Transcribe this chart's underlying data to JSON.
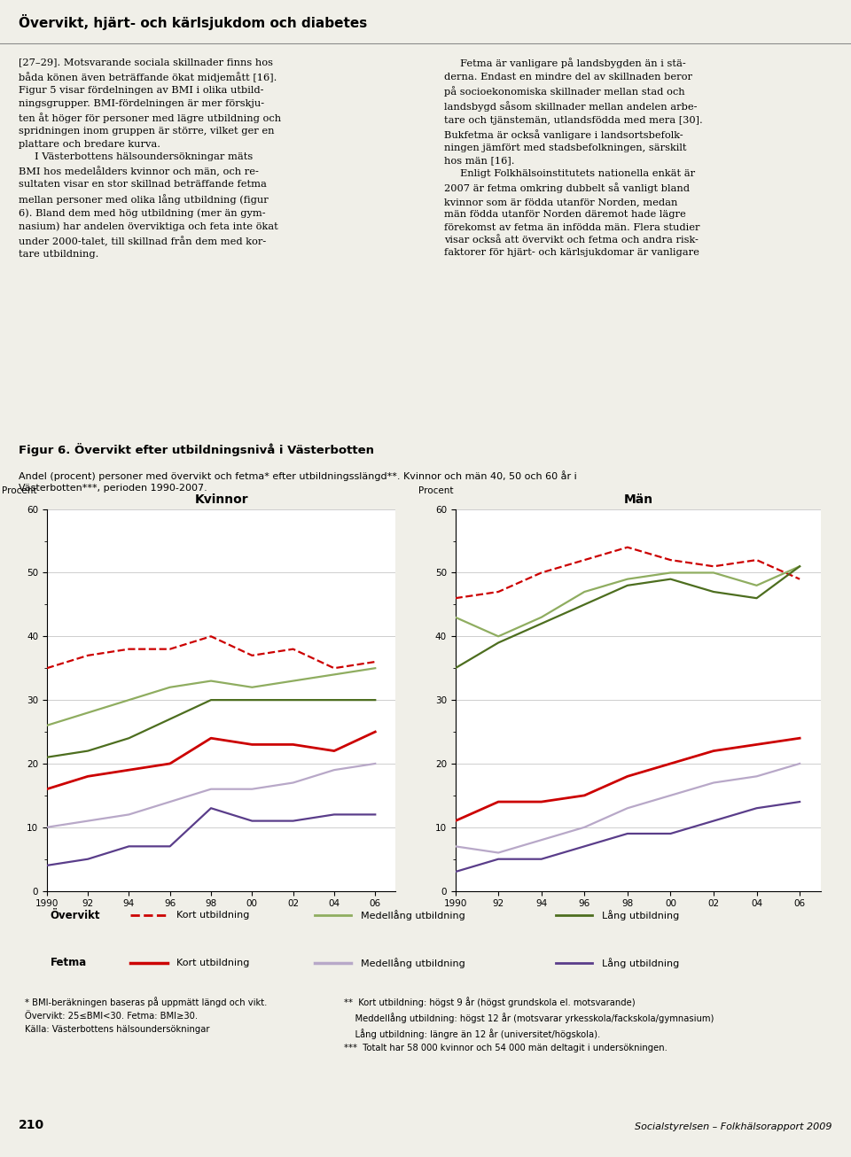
{
  "title_main": "Övervikt, hjärt- och kärlsjukdom och diabetes",
  "fig_title": "Figur 6. Övervikt efter utbildningsnivå i Västerbotten",
  "fig_subtitle": "Andel (procent) personer med övervikt och fetma* efter utbildningsslängd**. Kvinnor och män 40, 50 och 60 år i\nVästerbotten***, perioden 1990-2007.",
  "body_text_left": "[27–29]. Motsvarande sociala skillnader finns hos\nbåda könen även beträffande ökat midjemått [16].\nFigur 5 visar fördelningen av BMI i olika utbild-\nningsgrupper. BMI-fördelningen är mer förskju-\nten åt höger för personer med lägre utbildning och\nspridningen inom gruppen är större, vilket ger en\nplattare och bredare kurva.\n     I Västerbottens hälsoundersökningar mäts\nBMI hos medelålders kvinnor och män, och re-\nsultaten visar en stor skillnad beträffande fetma\nmellan personer med olika lång utbildning (figur\n6). Bland dem med hög utbildning (mer än gym-\nnasium) har andelen överviktiga och feta inte ökat\nunder 2000-talet, till skillnad från dem med kor-\ntare utbildning.",
  "body_text_right": "     Fetma är vanligare på landsbygden än i stä-\nderna. Endast en mindre del av skillnaden beror\npå socioekonomiska skillnader mellan stad och\nlandsbygd såsom skillnader mellan andelen arbe-\ntare och tjänstemän, utlandsfödda med mera [30].\nBukfetma är också vanligare i landsortsbefolk-\nningen jämfört med stadsbefolkningen, särskilt\nhos män [16].\n     Enligt Folkhälsoinstitutets nationella enkät är\n2007 är fetma omkring dubbelt så vanligt bland\nkvinnor som är födda utanför Norden, medan\nmän födda utanför Norden däremot hade lägre\nförekomst av fetma än infödda män. Flera studier\nvisar också att övervikt och fetma och andra risk-\nfaktorer för hjärt- och kärlsjukdomar är vanligare",
  "x_years": [
    1990,
    1992,
    1994,
    1996,
    1998,
    2000,
    2002,
    2004,
    2006
  ],
  "women": {
    "overvikt_kort": [
      35,
      37,
      38,
      38,
      40,
      37,
      38,
      35,
      36
    ],
    "overvikt_medel": [
      26,
      28,
      30,
      32,
      33,
      32,
      33,
      34,
      35
    ],
    "overvikt_lang": [
      21,
      22,
      24,
      27,
      30,
      30,
      30,
      30,
      30
    ],
    "fetma_kort": [
      16,
      18,
      19,
      20,
      24,
      23,
      23,
      22,
      25
    ],
    "fetma_medel": [
      10,
      11,
      12,
      14,
      16,
      16,
      17,
      19,
      20
    ],
    "fetma_lang": [
      4,
      5,
      7,
      7,
      13,
      11,
      11,
      12,
      12
    ]
  },
  "men": {
    "overvikt_kort": [
      46,
      47,
      50,
      52,
      54,
      52,
      51,
      52,
      49
    ],
    "overvikt_medel": [
      43,
      40,
      43,
      47,
      49,
      50,
      50,
      48,
      51
    ],
    "overvikt_lang": [
      35,
      39,
      42,
      45,
      48,
      49,
      47,
      46,
      51
    ],
    "fetma_kort": [
      11,
      14,
      14,
      15,
      18,
      20,
      22,
      23,
      24
    ],
    "fetma_medel": [
      7,
      6,
      8,
      10,
      13,
      15,
      17,
      18,
      20
    ],
    "fetma_lang": [
      3,
      5,
      5,
      7,
      9,
      9,
      11,
      13,
      14
    ]
  },
  "colors": {
    "overvikt_kort": "#cc0000",
    "overvikt_medel": "#8fad60",
    "overvikt_lang": "#4d6e1f",
    "fetma_kort": "#cc0000",
    "fetma_medel": "#b8a8c8",
    "fetma_lang": "#5a3d8a"
  },
  "footnote_left": "* BMI-beräkningen baseras på uppmätt längd och vikt.\nÖvervikt: 25≤BMI<30. Fetma: BMI≥30.\nKälla: Västerbottens hälsoundersökningar",
  "footnote_right_line1": "**  Kort utbildning: högst 9 år (högst grundskola el. motsvarande)",
  "footnote_right_line2": "    Meddellång utbildning: högst 12 år (motsvarar yrkesskola/fackskola/gymnasium)",
  "footnote_right_line3": "    Lång utbildning: längre än 12 år (universitet/högskola).",
  "footnote_right_line4": "***  Totalt har 58 000 kvinnor och 54 000 män deltagit i undersökningen.",
  "page_num": "210",
  "publisher": "Socialstyrelsen – Folkhälsorapport 2009",
  "page_bg": "#f0efe8",
  "fig_bg": "#d0d4b8"
}
